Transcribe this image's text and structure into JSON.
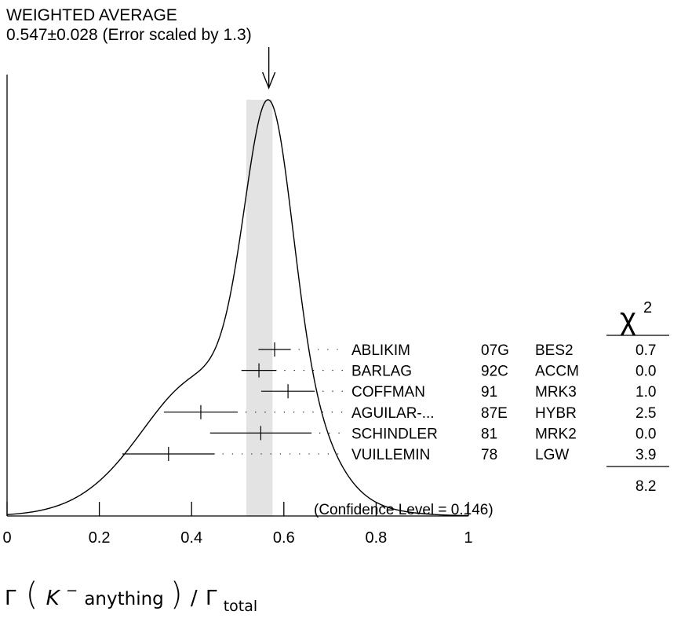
{
  "chart_data": {
    "type": "scatter",
    "title": "WEIGHTED AVERAGE",
    "subtitle": "0.547±0.028 (Error scaled by 1.3)",
    "average": {
      "value": 0.547,
      "error": 0.028,
      "scaled_error_band": [
        0.5186,
        0.5754
      ]
    },
    "xlim": [
      0,
      1
    ],
    "x_ticks": [
      "0",
      "0.2",
      "0.4",
      "0.6",
      "0.8",
      "1"
    ],
    "x_tick_values": [
      0,
      0.2,
      0.4,
      0.6,
      0.8,
      1
    ],
    "xlabel": {
      "gamma": "Γ",
      "particle": "K",
      "charge": "−",
      "word": " anything",
      "slash": "/",
      "sub": "total"
    },
    "chi2_header": "χ",
    "chi2_sup": "2",
    "measurements": [
      {
        "name": "ABLIKIM",
        "year": "07G",
        "exp": "BES2",
        "chi2": "0.7",
        "value": 0.58,
        "error": 0.035
      },
      {
        "name": "BARLAG",
        "year": "92C",
        "exp": "ACCM",
        "chi2": "0.0",
        "value": 0.546,
        "error": 0.038
      },
      {
        "name": "COFFMAN",
        "year": "91",
        "exp": "MRK3",
        "chi2": "1.0",
        "value": 0.609,
        "error": 0.058
      },
      {
        "name": "AGUILAR-...",
        "year": "87E",
        "exp": "HYBR",
        "chi2": "2.5",
        "value": 0.42,
        "error": 0.08
      },
      {
        "name": "SCHINDLER",
        "year": "81",
        "exp": "MRK2",
        "chi2": "0.0",
        "value": 0.55,
        "error": 0.11
      },
      {
        "name": "VUILLEMIN",
        "year": "78",
        "exp": "LGW",
        "chi2": "3.9",
        "value": 0.35,
        "error": 0.1
      }
    ],
    "chi2_total": "8.2",
    "confidence_level": "(Confidence Level = 0.146)"
  }
}
